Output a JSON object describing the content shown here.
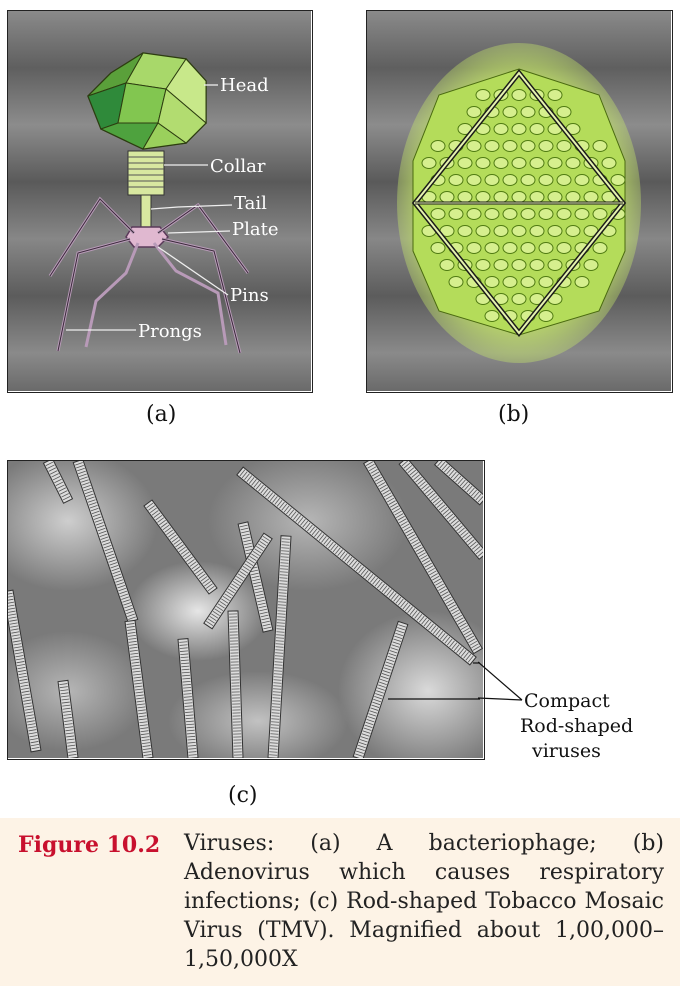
{
  "panel_a": {
    "labels": {
      "head": "Head",
      "collar": "Collar",
      "tail": "Tail",
      "plate": "Plate",
      "pins": "Pins",
      "prongs": "Prongs"
    },
    "sublabel": "(a)"
  },
  "panel_b": {
    "sublabel": "(b)"
  },
  "panel_c": {
    "callout": [
      "Compact",
      "Rod-shaped",
      "viruses"
    ],
    "sublabel": "(c)"
  },
  "caption": {
    "number": "Figure 10.2",
    "text": "Viruses: (a) A bacteriophage; (b) Adenovirus which causes respiratory infections; (c) Rod-shaped Tobacco Mosaic Virus (TMV). Magnified about 1,00,000–1,50,000X"
  },
  "colors": {
    "caption_bg": "#fdf3e6",
    "figure_number": "#c8102e",
    "virus_green": "#9acd32",
    "bg_gray": "#6e6e6e"
  }
}
